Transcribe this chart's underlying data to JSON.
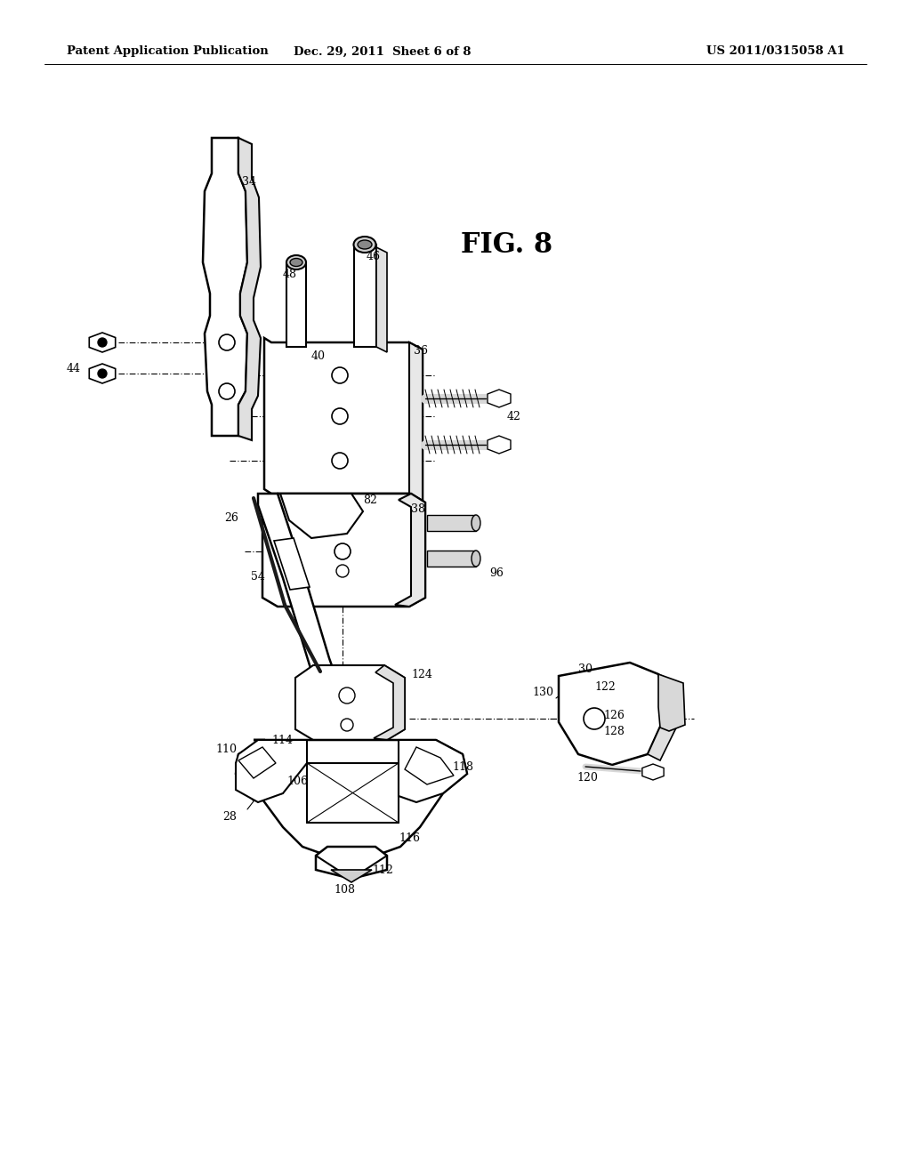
{
  "bg_color": "#ffffff",
  "header_left": "Patent Application Publication",
  "header_mid": "Dec. 29, 2011  Sheet 6 of 8",
  "header_right": "US 2011/0315058 A1",
  "fig_label": "FIG. 8",
  "header_fontsize": 9.5,
  "fig_label_fontsize": 22,
  "label_fontsize": 9.0
}
